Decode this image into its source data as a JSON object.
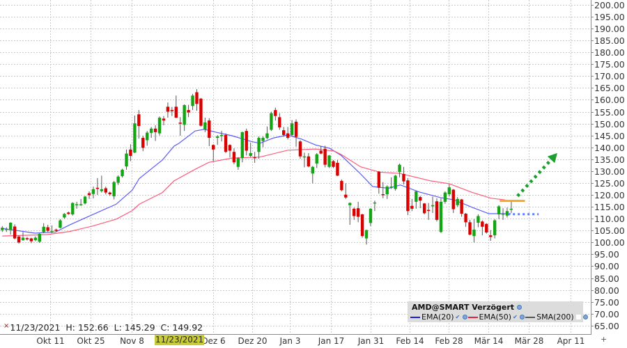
{
  "chart_data": {
    "type": "candlestick",
    "symbol_title": "AMD@SMART Verzögert",
    "ylim": [
      61.45,
      202
    ],
    "y_ticks": [
      200,
      195,
      190,
      185,
      180,
      175,
      170,
      165,
      160,
      155,
      150,
      145,
      140,
      135,
      130,
      125,
      120,
      115,
      110,
      105,
      100,
      95,
      90,
      85,
      80,
      75,
      70,
      65
    ],
    "x_ticks": [
      {
        "label": "Okt 11",
        "at": 11.6
      },
      {
        "label": "Okt 25",
        "at": 21.3
      },
      {
        "label": "Nov 8",
        "at": 31.3
      },
      {
        "label": "Dez 6",
        "at": 51.0
      },
      {
        "label": "Dez 20",
        "at": 60.4
      },
      {
        "label": "Jan 3",
        "at": 69.5
      },
      {
        "label": "Jan 17",
        "at": 79.4
      },
      {
        "label": "Jan 31",
        "at": 89.0
      },
      {
        "label": "Feb 14",
        "at": 98.4
      },
      {
        "label": "Feb 28",
        "at": 107.9
      },
      {
        "label": "Mär 14",
        "at": 117.5
      },
      {
        "label": "Mär 28",
        "at": 127.2
      },
      {
        "label": "Apr 11",
        "at": 137.3
      }
    ],
    "grid": true,
    "colors": {
      "up": "#14a514",
      "down": "#d90000",
      "wick": "#555555",
      "ema20": "#5a5aff",
      "ema50": "#ff5a78",
      "sma200": "#555555",
      "target_line": "#f5a623",
      "forecast_arrow": "#1e9e2e",
      "grid": "#c8c8c8"
    },
    "candles_ohlc": [
      [
        105.2,
        106.9,
        104.4,
        106.2
      ],
      [
        105.6,
        106.4,
        104.4,
        105.7
      ],
      [
        105.2,
        108.5,
        103.3,
        108.3
      ],
      [
        106.7,
        107.6,
        101.3,
        101.7
      ],
      [
        102.5,
        103.0,
        99.5,
        100.0
      ],
      [
        101.0,
        104.4,
        100.7,
        102.0
      ],
      [
        101.8,
        102.3,
        100.8,
        101.3
      ],
      [
        101.7,
        102.0,
        99.7,
        100.5
      ],
      [
        101.0,
        102.6,
        100.5,
        102.0
      ],
      [
        100.3,
        104.0,
        99.8,
        103.6
      ],
      [
        104.4,
        108.1,
        103.9,
        106.6
      ],
      [
        106.4,
        107.4,
        104.4,
        104.9
      ],
      [
        104.6,
        107.2,
        103.9,
        104.7
      ],
      [
        105.4,
        105.8,
        104.5,
        104.9
      ],
      [
        106.2,
        109.8,
        105.9,
        109.3
      ],
      [
        110.5,
        112.4,
        110.0,
        112.0
      ],
      [
        112.6,
        113.0,
        111.6,
        112.0
      ],
      [
        111.8,
        116.9,
        111.3,
        116.6
      ],
      [
        116.0,
        117.1,
        114.2,
        116.1
      ],
      [
        116.0,
        118.3,
        115.4,
        116.1
      ],
      [
        116.4,
        119.6,
        116.0,
        119.3
      ],
      [
        120.7,
        121.5,
        118.3,
        119.9
      ],
      [
        120.4,
        123.5,
        118.5,
        122.4
      ],
      [
        123.0,
        127.1,
        120.0,
        122.5
      ],
      [
        121.6,
        128.1,
        121.0,
        122.4
      ],
      [
        122.8,
        123.5,
        120.2,
        121.0
      ],
      [
        121.0,
        121.4,
        119.6,
        120.3
      ],
      [
        119.4,
        125.9,
        118.1,
        125.4
      ],
      [
        125.1,
        128.2,
        124.2,
        127.7
      ],
      [
        127.9,
        131.0,
        127.3,
        130.6
      ],
      [
        132.0,
        139.1,
        130.6,
        137.4
      ],
      [
        139.1,
        141.3,
        134.2,
        136.4
      ],
      [
        137.8,
        153.4,
        137.6,
        150.1
      ],
      [
        153.9,
        155.7,
        143.7,
        149.0
      ],
      [
        144.0,
        144.9,
        138.4,
        139.8
      ],
      [
        143.0,
        146.9,
        140.7,
        146.2
      ],
      [
        146.1,
        148.6,
        144.0,
        147.9
      ],
      [
        147.9,
        149.3,
        142.7,
        146.4
      ],
      [
        145.9,
        153.0,
        145.0,
        152.5
      ],
      [
        152.1,
        153.2,
        149.3,
        151.3
      ],
      [
        157.1,
        158.9,
        152.5,
        155.0
      ],
      [
        155.7,
        157.0,
        153.2,
        155.2
      ],
      [
        157.1,
        161.8,
        152.3,
        152.5
      ],
      [
        150.4,
        152.7,
        144.9,
        150.3
      ],
      [
        149.5,
        158.1,
        146.9,
        157.8
      ],
      [
        155.7,
        157.9,
        152.7,
        154.7
      ],
      [
        157.4,
        162.5,
        155.7,
        161.8
      ],
      [
        163.2,
        164.5,
        155.4,
        158.3
      ],
      [
        160.5,
        160.8,
        148.8,
        149.1
      ],
      [
        147.6,
        152.5,
        146.4,
        150.5
      ],
      [
        151.3,
        152.3,
        140.5,
        144.0
      ],
      [
        141.0,
        141.3,
        134.2,
        139.1
      ],
      [
        144.0,
        145.2,
        141.0,
        144.6
      ],
      [
        144.8,
        146.9,
        142.5,
        145.2
      ],
      [
        145.2,
        145.9,
        137.6,
        138.1
      ],
      [
        141.0,
        141.3,
        135.7,
        138.6
      ],
      [
        138.1,
        139.6,
        132.9,
        133.7
      ],
      [
        131.8,
        135.9,
        130.6,
        135.5
      ],
      [
        135.5,
        146.6,
        133.7,
        146.4
      ],
      [
        146.9,
        147.9,
        136.6,
        138.6
      ],
      [
        136.4,
        142.0,
        135.9,
        137.6
      ],
      [
        135.9,
        138.1,
        133.5,
        135.7
      ],
      [
        138.1,
        144.6,
        135.2,
        144.0
      ],
      [
        142.7,
        144.6,
        140.1,
        144.0
      ],
      [
        143.9,
        148.8,
        143.5,
        145.9
      ],
      [
        147.4,
        155.0,
        146.9,
        154.4
      ],
      [
        155.7,
        156.7,
        151.3,
        153.2
      ],
      [
        152.7,
        154.4,
        147.4,
        148.4
      ],
      [
        147.2,
        148.6,
        144.5,
        145.2
      ],
      [
        145.9,
        148.6,
        143.3,
        144.0
      ],
      [
        145.2,
        151.5,
        144.6,
        150.1
      ],
      [
        150.8,
        151.8,
        140.3,
        144.4
      ],
      [
        142.5,
        143.0,
        135.2,
        136.2
      ],
      [
        136.1,
        137.8,
        131.6,
        136.2
      ],
      [
        136.2,
        137.6,
        131.6,
        132.0
      ],
      [
        129.0,
        132.2,
        124.9,
        131.8
      ],
      [
        133.2,
        137.6,
        131.3,
        137.1
      ],
      [
        138.6,
        140.6,
        137.1,
        137.4
      ],
      [
        139.4,
        140.7,
        131.6,
        132.7
      ],
      [
        131.8,
        136.8,
        131.3,
        136.6
      ],
      [
        134.2,
        134.7,
        131.3,
        131.8
      ],
      [
        133.5,
        134.7,
        127.9,
        128.1
      ],
      [
        125.9,
        126.5,
        121.5,
        122.0
      ],
      [
        120.1,
        124.9,
        118.3,
        118.9
      ],
      [
        115.7,
        116.9,
        107.4,
        116.6
      ],
      [
        114.2,
        114.7,
        109.5,
        111.1
      ],
      [
        114.4,
        117.1,
        108.5,
        110.8
      ],
      [
        111.8,
        112.1,
        102.0,
        102.7
      ],
      [
        101.7,
        105.4,
        99.1,
        105.2
      ],
      [
        108.2,
        114.4,
        106.9,
        114.2
      ],
      [
        116.4,
        117.6,
        113.2,
        116.8
      ],
      [
        129.8,
        130.0,
        120.5,
        123.0
      ],
      [
        120.3,
        125.4,
        118.6,
        119.9
      ],
      [
        120.3,
        124.0,
        118.3,
        123.5
      ],
      [
        123.0,
        127.4,
        122.5,
        123.5
      ],
      [
        122.5,
        128.4,
        121.8,
        128.1
      ],
      [
        129.6,
        133.2,
        127.4,
        132.7
      ],
      [
        128.8,
        131.8,
        124.4,
        125.7
      ],
      [
        126.1,
        127.1,
        111.5,
        113.2
      ],
      [
        115.4,
        118.3,
        113.2,
        114.2
      ],
      [
        117.1,
        121.8,
        114.2,
        121.5
      ],
      [
        119.1,
        119.6,
        114.4,
        117.6
      ],
      [
        116.4,
        116.6,
        111.8,
        112.3
      ],
      [
        113.7,
        116.6,
        109.5,
        113.4
      ],
      [
        115.2,
        119.3,
        112.4,
        115.7
      ],
      [
        117.3,
        118.6,
        108.8,
        109.5
      ],
      [
        104.4,
        118.6,
        104.0,
        117.1
      ],
      [
        117.1,
        121.5,
        116.3,
        121.0
      ],
      [
        120.3,
        124.4,
        119.3,
        123.2
      ],
      [
        122.2,
        122.5,
        112.4,
        114.0
      ],
      [
        115.7,
        119.1,
        115.0,
        118.3
      ],
      [
        118.1,
        118.3,
        110.8,
        112.1
      ],
      [
        112.1,
        112.4,
        106.6,
        108.5
      ],
      [
        108.5,
        109.5,
        103.0,
        103.3
      ],
      [
        102.7,
        109.8,
        100.0,
        105.4
      ],
      [
        108.3,
        111.8,
        106.4,
        111.1
      ],
      [
        108.8,
        109.3,
        103.0,
        106.6
      ],
      [
        107.8,
        108.1,
        103.7,
        104.2
      ],
      [
        103.0,
        105.2,
        100.7,
        102.3
      ],
      [
        103.0,
        109.8,
        101.7,
        109.3
      ],
      [
        111.8,
        115.7,
        109.8,
        115.2
      ],
      [
        112.0,
        114.4,
        109.5,
        112.1
      ],
      [
        111.3,
        114.7,
        110.5,
        113.2
      ],
      [
        114.0,
        117.1,
        112.4,
        114.2
      ]
    ],
    "series": [
      {
        "name": "EMA(20)",
        "points": [
          [
            0,
            105.9
          ],
          [
            7.9,
            103.9
          ],
          [
            12.9,
            104.4
          ],
          [
            16.3,
            107.4
          ],
          [
            21.8,
            111.7
          ],
          [
            27.5,
            116.1
          ],
          [
            31.4,
            122.0
          ],
          [
            33.1,
            126.9
          ],
          [
            38.7,
            134.7
          ],
          [
            41.5,
            140.5
          ],
          [
            42.7,
            141.7
          ],
          [
            46.6,
            146.9
          ],
          [
            48.8,
            147.6
          ],
          [
            51.6,
            146.4
          ],
          [
            55.5,
            144.9
          ],
          [
            60.1,
            142.5
          ],
          [
            62.2,
            141.7
          ],
          [
            65.6,
            144.0
          ],
          [
            69.0,
            145.2
          ],
          [
            72.3,
            143.5
          ],
          [
            75.7,
            141.0
          ],
          [
            79.1,
            139.6
          ],
          [
            81.9,
            136.6
          ],
          [
            86.6,
            128.8
          ],
          [
            89.5,
            123.5
          ],
          [
            93.4,
            122.8
          ],
          [
            96.2,
            124.2
          ],
          [
            100.8,
            121.2
          ],
          [
            105.8,
            118.9
          ],
          [
            109.2,
            117.9
          ],
          [
            113.6,
            114.7
          ],
          [
            117.6,
            112.1
          ],
          [
            122.9,
            112.1
          ]
        ]
      },
      {
        "name": "EMA(50)",
        "points": [
          [
            0,
            102.7
          ],
          [
            10.7,
            103.3
          ],
          [
            16.3,
            104.6
          ],
          [
            21.8,
            106.9
          ],
          [
            27.5,
            109.8
          ],
          [
            31.4,
            113.4
          ],
          [
            33.1,
            116.1
          ],
          [
            38.7,
            121.0
          ],
          [
            41.5,
            125.9
          ],
          [
            46.6,
            130.8
          ],
          [
            49.9,
            133.7
          ],
          [
            55.5,
            135.5
          ],
          [
            62.2,
            135.9
          ],
          [
            69.0,
            138.8
          ],
          [
            75.7,
            139.3
          ],
          [
            80.3,
            138.4
          ],
          [
            81.9,
            137.0
          ],
          [
            86.6,
            131.8
          ],
          [
            91.2,
            129.6
          ],
          [
            96.2,
            129.0
          ],
          [
            103.5,
            125.9
          ],
          [
            108.0,
            124.7
          ],
          [
            113.6,
            121.0
          ],
          [
            118.1,
            118.6
          ],
          [
            121.5,
            117.9
          ]
        ]
      }
    ],
    "annotations": {
      "target_line": {
        "value": 117.5,
        "from": 120.2,
        "to": 126.3
      },
      "dotted_level": {
        "value": 111.9,
        "from": 122.2,
        "to": 129.6
      },
      "forecast_arrow": {
        "from": [
          124.5,
          119.5
        ],
        "to": [
          134.1,
          137.6
        ]
      }
    }
  },
  "legend": {
    "title": "AMD@SMART Verzögert",
    "items": [
      {
        "label": "EMA(20)",
        "color": "#1a1adc",
        "checked": true
      },
      {
        "label": "EMA(50)",
        "color": "#e0203c",
        "checked": true
      },
      {
        "label": "SMA(200)",
        "color": "#555555",
        "checked": false
      }
    ],
    "check_glyph": "✔"
  },
  "info": {
    "close_glyph": "×",
    "text": "11/23/2021  H: 152.66  L: 145.29  C: 149.92"
  },
  "crosshair_date": "11/23/2021",
  "corner_glyph": "+"
}
